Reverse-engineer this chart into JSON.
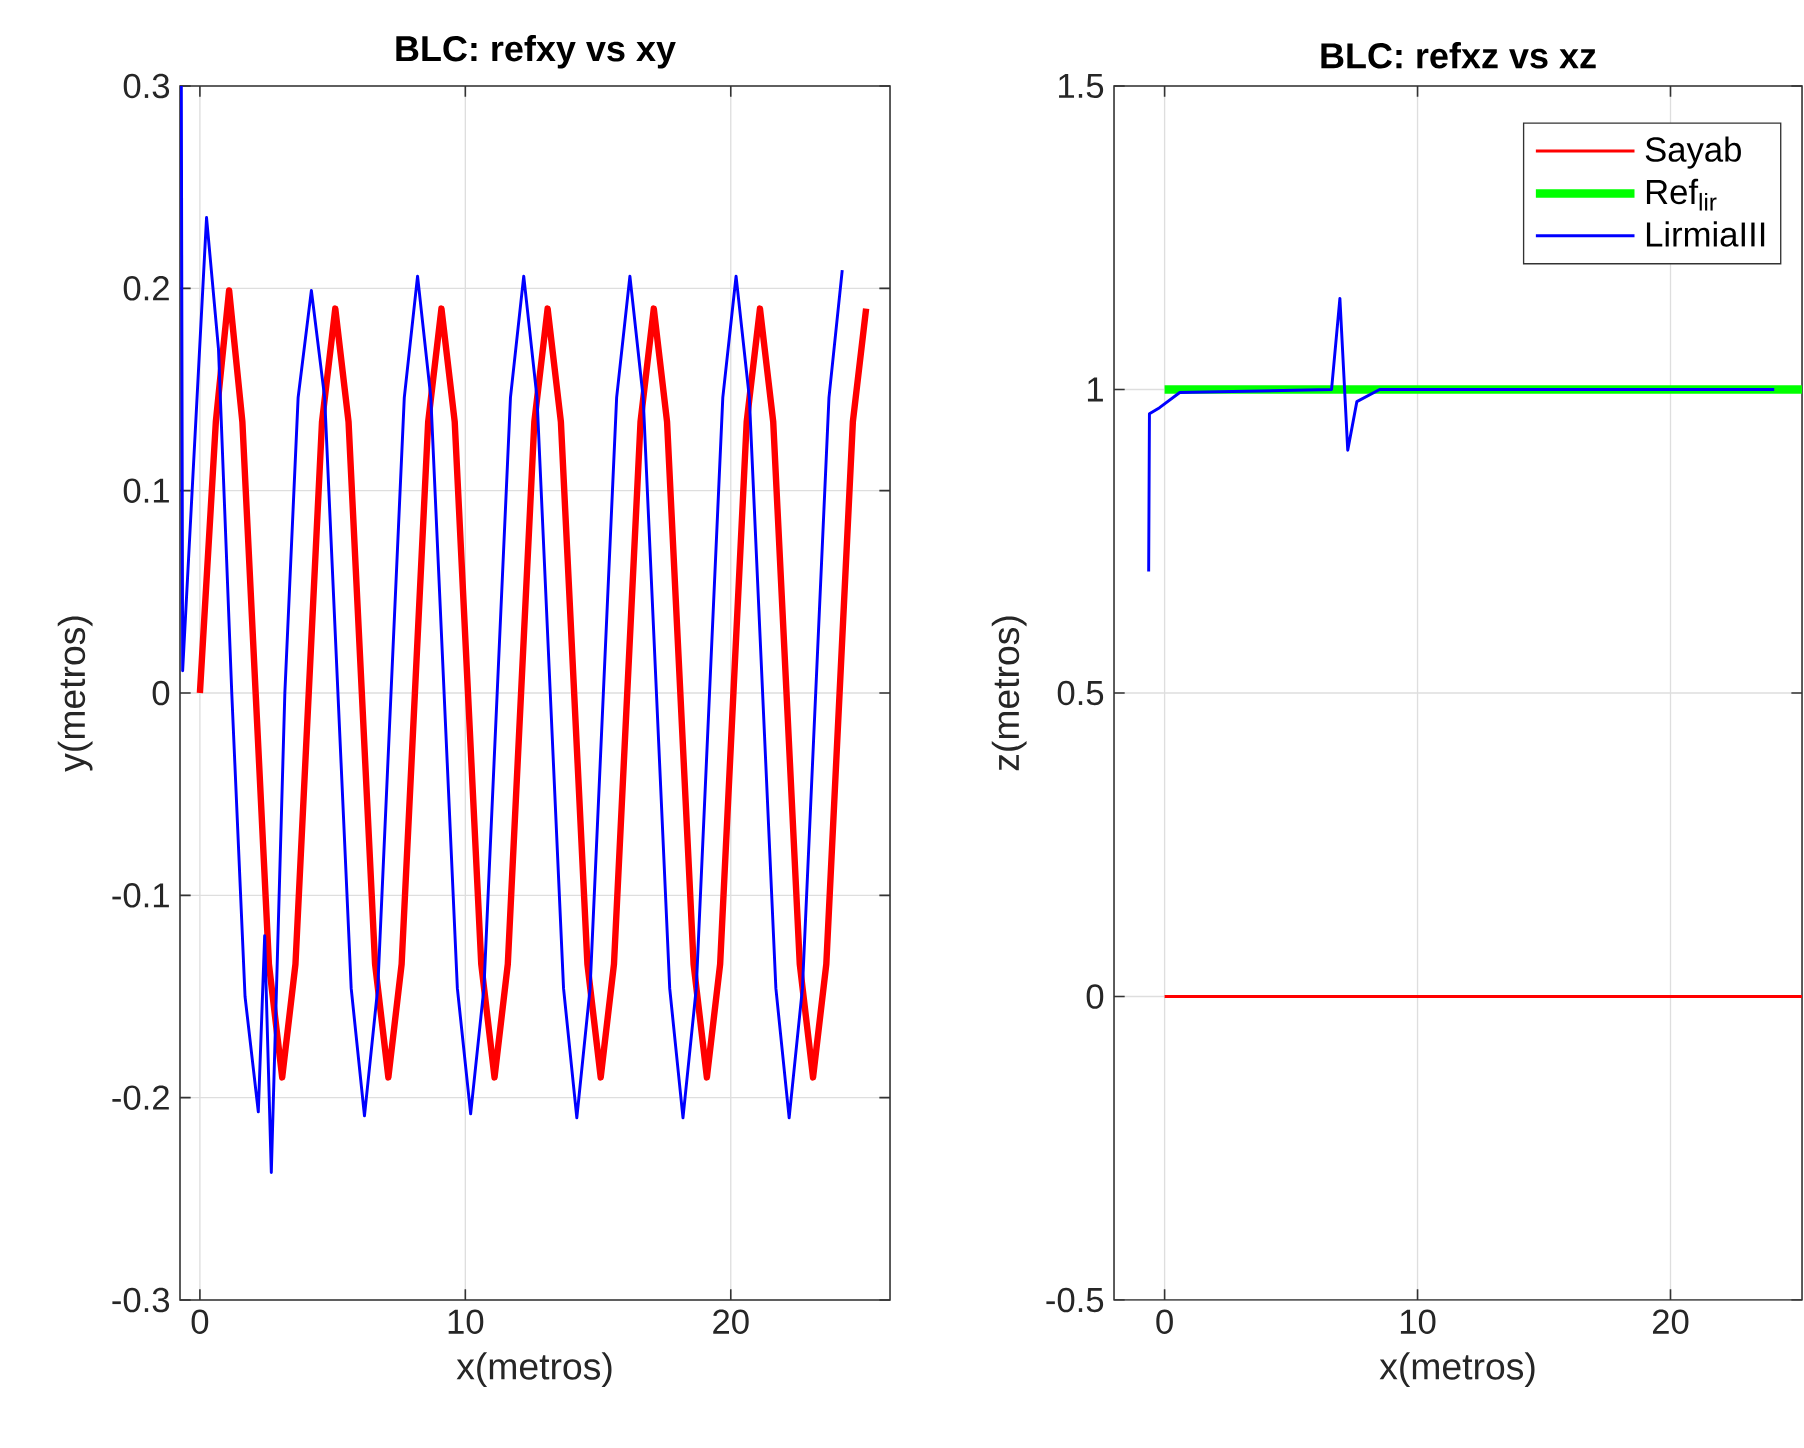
{
  "chart_data": [
    {
      "type": "line",
      "title": "BLC: refxy vs xy",
      "xlabel": "x(metros)",
      "ylabel": "y(metros)",
      "xlim": [
        -0.75,
        26
      ],
      "ylim": [
        -0.3,
        0.3
      ],
      "xticks": [
        0,
        10,
        20
      ],
      "yticks": [
        -0.3,
        -0.2,
        -0.1,
        0,
        0.1,
        0.2,
        0.3
      ],
      "grid": true,
      "series": [
        {
          "color": "#ff0000",
          "x": [
            0,
            0.6,
            1.1,
            1.6,
            2.1,
            2.6,
            3.1,
            3.6,
            4.1,
            4.6,
            5.1,
            5.6,
            6.1,
            6.6,
            7.1,
            7.6,
            8.1,
            8.6,
            9.1,
            9.6,
            10.1,
            10.6,
            11.1,
            11.6,
            12.1,
            12.6,
            13.1,
            13.6,
            14.1,
            14.6,
            15.1,
            15.6,
            16.1,
            16.6,
            17.1,
            17.6,
            18.1,
            18.6,
            19.1,
            19.6,
            20.1,
            20.6,
            21.1,
            21.6,
            22.1,
            22.6,
            23.1,
            23.6,
            24.1,
            24.6,
            25.1
          ],
          "values": [
            0,
            0.134,
            0.199,
            0.134,
            0,
            -0.134,
            -0.19,
            -0.134,
            0,
            0.134,
            0.19,
            0.134,
            0,
            -0.134,
            -0.19,
            -0.134,
            0,
            0.134,
            0.19,
            0.134,
            0,
            -0.134,
            -0.19,
            -0.134,
            0,
            0.134,
            0.19,
            0.134,
            0,
            -0.134,
            -0.19,
            -0.134,
            0,
            0.134,
            0.19,
            0.134,
            0,
            -0.134,
            -0.19,
            -0.134,
            0,
            0.134,
            0.19,
            0.134,
            0,
            -0.134,
            -0.19,
            -0.134,
            0,
            0.134,
            0.19
          ]
        },
        {
          "color": "#0000ff",
          "x": [
            -0.7,
            -0.65,
            0.25,
            0.7,
            1.2,
            1.7,
            2.2,
            2.44,
            2.69,
            3.2,
            3.7,
            4.2,
            4.7,
            5.2,
            5.7,
            6.2,
            6.7,
            7.2,
            7.7,
            8.2,
            8.7,
            9.2,
            9.7,
            10.2,
            10.7,
            11.2,
            11.7,
            12.2,
            12.7,
            13.2,
            13.7,
            14.2,
            14.7,
            15.2,
            15.7,
            16.2,
            16.7,
            17.2,
            17.7,
            18.2,
            18.7,
            19.2,
            19.7,
            20.2,
            20.7,
            21.2,
            21.7,
            22.2,
            22.7,
            23.2,
            23.7,
            24.2
          ],
          "values": [
            0.3,
            0.011,
            0.235,
            0.17,
            0.0,
            -0.15,
            -0.207,
            -0.12,
            -0.237,
            0.0,
            0.146,
            0.199,
            0.146,
            0.0,
            -0.146,
            -0.209,
            -0.146,
            0.0,
            0.146,
            0.206,
            0.146,
            0.0,
            -0.146,
            -0.208,
            -0.146,
            0.0,
            0.146,
            0.206,
            0.146,
            0.0,
            -0.146,
            -0.21,
            -0.146,
            0.0,
            0.146,
            0.206,
            0.146,
            0.0,
            -0.146,
            -0.21,
            -0.146,
            0.0,
            0.146,
            0.206,
            0.146,
            0.0,
            -0.146,
            -0.21,
            -0.146,
            0.0,
            0.146,
            0.209
          ]
        }
      ]
    },
    {
      "type": "line",
      "title": "BLC: refxz vs xz",
      "xlabel": "x(metros)",
      "ylabel": "z(metros)",
      "xlim": [
        -2,
        25.2
      ],
      "ylim": [
        -0.5,
        1.5
      ],
      "xticks": [
        0,
        10,
        20
      ],
      "yticks": [
        -0.5,
        0,
        0.5,
        1,
        1.5
      ],
      "grid": true,
      "legend": "top right",
      "series": [
        {
          "name": "Sayab",
          "color": "#ff0000",
          "x": [
            0,
            25.2
          ],
          "values": [
            0,
            0
          ]
        },
        {
          "name": "Ref$_{lir}$",
          "color": "#00ff00",
          "x": [
            0,
            25.2
          ],
          "values": [
            1,
            1
          ]
        },
        {
          "name": "LirmiaIII",
          "color": "#0000ff",
          "x": [
            -0.63,
            -0.6,
            -0.2,
            0.6,
            6.6,
            6.93,
            7.24,
            7.6,
            8.5,
            24.1
          ],
          "values": [
            0.7,
            0.96,
            0.97,
            0.995,
            1.0,
            1.15,
            0.9,
            0.98,
            1.0,
            1.0
          ]
        }
      ]
    }
  ]
}
